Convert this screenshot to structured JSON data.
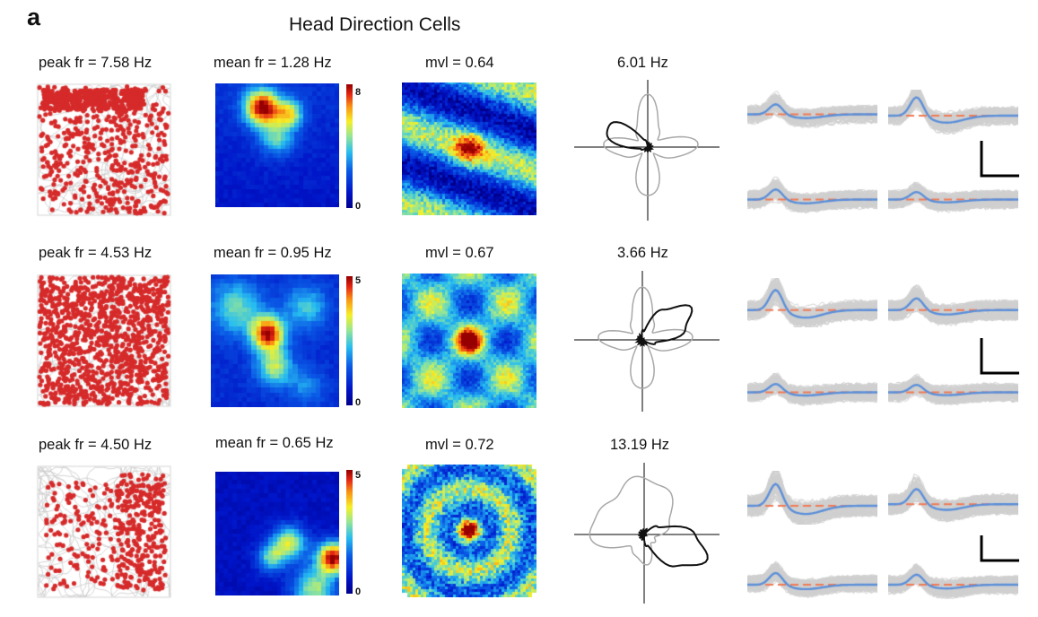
{
  "panel_letter": "a",
  "figure_title": "Head Direction Cells",
  "rows": [
    {
      "peak_fr": "peak fr = 7.58 Hz",
      "mean_fr": "mean fr = 1.28 Hz",
      "mvl": "mvl = 0.64",
      "polar_peak": "6.01 Hz",
      "colorbar_max": "8",
      "colorbar_min": "0"
    },
    {
      "peak_fr": "peak fr = 4.53 Hz",
      "mean_fr": "mean fr = 0.95 Hz",
      "mvl": "mvl = 0.67",
      "polar_peak": "3.66 Hz",
      "colorbar_max": "5",
      "colorbar_min": "0"
    },
    {
      "peak_fr": "peak fr = 4.50 Hz",
      "mean_fr": "mean fr = 0.65 Hz",
      "mvl": "mvl = 0.72",
      "polar_peak": "13.19 Hz",
      "colorbar_max": "5",
      "colorbar_min": "0"
    }
  ],
  "colors": {
    "spike": "#d62a2a",
    "trajectory": "#c8c8c8",
    "waveform_mean": "#5b8fd9",
    "waveform_traces": "#cfcfcf",
    "threshold_dash": "#f07a55",
    "polar_cell": "#111111",
    "polar_reference": "#a8a8a8"
  }
}
